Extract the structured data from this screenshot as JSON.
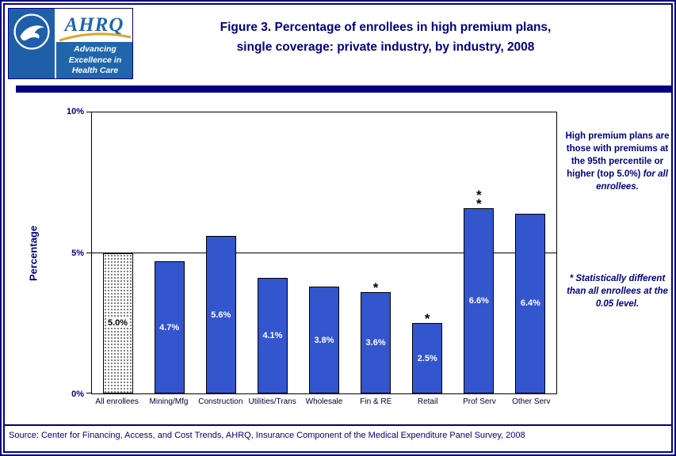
{
  "colors": {
    "navy": "#000080",
    "bar_blue": "#3355CD",
    "logo_blue": "#2166AC",
    "hhs_blue": "#1F5FA9",
    "gold": "#D9A72A"
  },
  "header": {
    "logo": {
      "acronym": "AHRQ",
      "tagline": "Advancing Excellence in Health Care"
    },
    "title_line1": "Figure 3. Percentage of enrollees in high premium plans,",
    "title_line2": "single coverage: private industry, by industry, 2008"
  },
  "chart_data": {
    "type": "bar",
    "title": "Figure 3. Percentage of enrollees in high premium plans, single coverage: private industry, by industry, 2008",
    "ylabel": "Percentage",
    "ylim": [
      0,
      10
    ],
    "yticks": [
      {
        "value": 0,
        "label": "0%"
      },
      {
        "value": 5,
        "label": "5%"
      },
      {
        "value": 10,
        "label": "10%"
      }
    ],
    "gridline_at": 5,
    "legend": "none",
    "categories": [
      "All enrollees",
      "Mining/Mfg",
      "Construction",
      "Utilities/Trans",
      "Wholesale",
      "Fin & RE",
      "Retail",
      "Prof Serv",
      "Other Serv"
    ],
    "values": [
      5.0,
      4.7,
      5.6,
      4.1,
      3.8,
      3.6,
      2.5,
      6.6,
      6.4
    ],
    "bar_labels": [
      "5.0%",
      "4.7%",
      "5.6%",
      "4.1%",
      "3.8%",
      "3.6%",
      "2.5%",
      "6.6%",
      "6.4%"
    ],
    "asterisks": [
      "",
      "",
      "",
      "",
      "",
      "*",
      "*",
      "*\n*",
      ""
    ],
    "first_bar_style": "dotted-pattern"
  },
  "notes": {
    "premium_note_main": "High premium plans are those with premiums at the 95th percentile or higher (top 5.0%) ",
    "premium_note_italic": "for all enrollees.",
    "stat_note": "* Statistically different than all enrollees at the 0.05 level."
  },
  "footer": {
    "source": "Source: Center for Financing, Access, and Cost Trends, AHRQ, Insurance Component of the Medical Expenditure Panel Survey, 2008"
  }
}
